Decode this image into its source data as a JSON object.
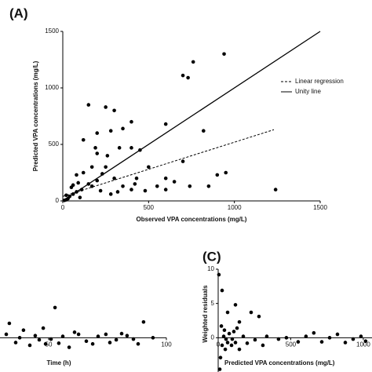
{
  "chart_data": [
    {
      "type": "scatter",
      "title": "(A)",
      "x_label": "Observed VPA concentrations (mg/L)",
      "y_label": "Predicted VPA concentrations (mg/L)",
      "xlim": [
        0,
        1500
      ],
      "ylim": [
        0,
        1500
      ],
      "xticks": [
        0,
        500,
        1000,
        1500
      ],
      "yticks": [
        0,
        500,
        1000,
        1500
      ],
      "color": "#000000",
      "x": [
        1240,
        940,
        760,
        700,
        730,
        820,
        600,
        950,
        900,
        850,
        700,
        740,
        650,
        600,
        480,
        400,
        300,
        250,
        350,
        400,
        330,
        450,
        430,
        420,
        500,
        280,
        200,
        190,
        150,
        120,
        170,
        250,
        300,
        350,
        260,
        200,
        150,
        110,
        80,
        60,
        40,
        30,
        20,
        100,
        50,
        20,
        120,
        80,
        220,
        170,
        400,
        320,
        280,
        550,
        600,
        200,
        230,
        90,
        60,
        10
      ],
      "y": [
        100,
        1300,
        1230,
        1110,
        1090,
        620,
        680,
        250,
        230,
        130,
        350,
        130,
        170,
        100,
        90,
        700,
        800,
        830,
        640,
        470,
        470,
        450,
        200,
        150,
        300,
        620,
        600,
        470,
        850,
        540,
        300,
        300,
        200,
        130,
        400,
        180,
        150,
        100,
        80,
        60,
        40,
        20,
        10,
        30,
        120,
        50,
        250,
        230,
        90,
        130,
        100,
        80,
        60,
        130,
        200,
        420,
        240,
        160,
        140,
        5
      ],
      "lines": [
        {
          "name": "Linear regression",
          "style": "dashed",
          "x": [
            0,
            1230
          ],
          "y": [
            40,
            630
          ]
        },
        {
          "name": "Unity line",
          "style": "solid",
          "x": [
            0,
            1500
          ],
          "y": [
            0,
            1500
          ]
        }
      ]
    },
    {
      "type": "scatter",
      "x_label": "Time (h)",
      "xlim": [
        0,
        100
      ],
      "ylim": [
        -5,
        10
      ],
      "xticks": [
        50,
        100
      ],
      "yticks": [],
      "zero_line": true,
      "color": "#000000",
      "x": [
        52.7,
        33.3,
        39.3,
        44.3,
        47.7,
        51,
        56,
        61,
        66,
        71,
        76,
        81,
        86,
        90.3,
        94.3,
        36,
        42,
        48.7,
        58.7,
        62.7,
        68.7,
        74.3,
        78.7,
        83.3,
        88,
        32,
        37.7,
        46,
        54.3
      ],
      "y": [
        4.4,
        2.1,
        1.1,
        0.3,
        1.4,
        -0.2,
        0.2,
        0.8,
        -0.5,
        0.2,
        -0.7,
        0.6,
        -0.2,
        2.3,
        0,
        -0.7,
        -1.1,
        -0.9,
        -1.4,
        0.5,
        -0.9,
        0.5,
        -0.3,
        0.3,
        -0.9,
        0.5,
        0,
        -0.3,
        -0.8
      ]
    },
    {
      "type": "scatter",
      "title": "(C)",
      "x_label": "Predicted VPA concentrations (mg/L)",
      "y_label": "Weighted residuals",
      "xlim": [
        0,
        1060
      ],
      "ylim": [
        -5,
        10
      ],
      "xticks": [
        0,
        500,
        1000
      ],
      "yticks": [
        0,
        5,
        10
      ],
      "zero_line": true,
      "color": "#000000",
      "x": [
        5,
        27,
        119,
        65,
        227,
        146,
        281,
        22,
        43,
        76,
        97,
        119,
        173,
        200,
        254,
        335,
        416,
        470,
        551,
        605,
        659,
        714,
        768,
        822,
        876,
        930,
        984,
        1016,
        27,
        49,
        11,
        16,
        92,
        146,
        308,
        38,
        54,
        65,
        108,
        130
      ],
      "y": [
        9.2,
        6.9,
        4.8,
        3.7,
        3.7,
        2.3,
        3.1,
        1.7,
        1.1,
        0.6,
        -0.2,
        -0.7,
        0.2,
        -0.8,
        -0.3,
        0.2,
        -0.2,
        0,
        -0.6,
        0.2,
        0.7,
        -0.6,
        0,
        0.5,
        -0.7,
        -0.2,
        0.2,
        -0.5,
        -1.1,
        -1.7,
        -4.6,
        -2.9,
        -1.1,
        -1.7,
        -1.1,
        0.2,
        -0.2,
        -0.7,
        0.9,
        1.4
      ]
    }
  ]
}
